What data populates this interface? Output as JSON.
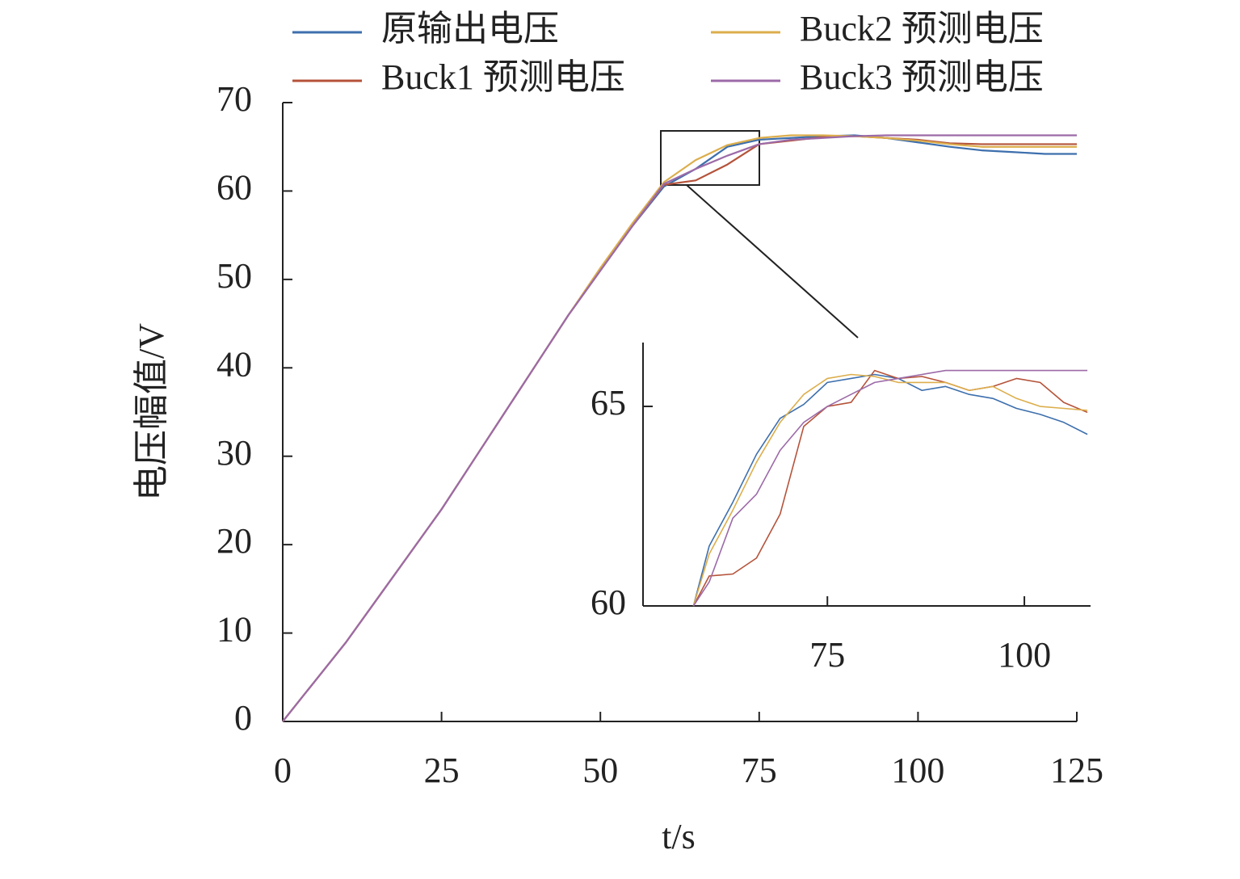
{
  "chart_data": [
    {
      "type": "line",
      "x_label": "t/s",
      "y_label": "电压幅值/V",
      "x": [
        0,
        5,
        10,
        15,
        20,
        25,
        30,
        35,
        40,
        45,
        50,
        55,
        60,
        65,
        70,
        75,
        80,
        85,
        90,
        95,
        100,
        105,
        110,
        115,
        120,
        125
      ],
      "series": [
        {
          "name": "原输出电压",
          "color": "#3d6fad",
          "values": [
            0,
            4.5,
            9,
            14,
            19,
            24,
            29.5,
            35,
            40.5,
            46,
            51,
            56,
            60.5,
            62.5,
            65,
            65.8,
            66,
            66.2,
            66.3,
            66,
            65.5,
            65,
            64.6,
            64.4,
            64.2,
            64.2
          ]
        },
        {
          "name": "Buck1 预测电压",
          "color": "#b5533a",
          "values": [
            0,
            4.5,
            9,
            14,
            19,
            24,
            29.5,
            35,
            40.5,
            46,
            51,
            56,
            60.7,
            61.2,
            63,
            65.3,
            65.7,
            66.1,
            66.2,
            66,
            65.8,
            65.4,
            65.3,
            65.3,
            65.3,
            65.3
          ]
        },
        {
          "name": "Buck2 预测电压",
          "color": "#dcae4c",
          "values": [
            0,
            4.5,
            9,
            14,
            19,
            24,
            29.5,
            35,
            40.5,
            46,
            51.3,
            56.3,
            61,
            63.5,
            65.2,
            66,
            66.3,
            66.3,
            66.2,
            66,
            65.7,
            65.3,
            65,
            65,
            65,
            65
          ]
        },
        {
          "name": "Buck3 预测电压",
          "color": "#9c6aa8",
          "values": [
            0,
            4.5,
            9,
            14,
            19,
            24,
            29.5,
            35,
            40.5,
            46,
            51,
            56,
            60.8,
            62.5,
            64,
            65.3,
            65.8,
            66,
            66.2,
            66.3,
            66.3,
            66.3,
            66.3,
            66.3,
            66.3,
            66.3
          ]
        }
      ],
      "xlim": [
        0,
        125
      ],
      "xticks": [
        0,
        25,
        50,
        75,
        100,
        125
      ],
      "ylim": [
        0,
        70
      ],
      "yticks": [
        0,
        10,
        20,
        30,
        40,
        50,
        60,
        70
      ],
      "legend": "top"
    },
    {
      "type": "line",
      "x": [
        58,
        60,
        63,
        66,
        69,
        72,
        75,
        78,
        81,
        84,
        87,
        90,
        93,
        96,
        99,
        102,
        105,
        108
      ],
      "series": [
        {
          "color": "#3d6fad",
          "values": [
            60,
            61.5,
            62.6,
            63.8,
            64.7,
            65.05,
            65.6,
            65.7,
            65.8,
            65.7,
            65.4,
            65.5,
            65.3,
            65.2,
            64.95,
            64.8,
            64.6,
            64.3
          ]
        },
        {
          "color": "#b5533a",
          "values": [
            60,
            60.75,
            60.8,
            61.2,
            62.3,
            64.5,
            65,
            65.1,
            65.9,
            65.7,
            65.75,
            65.6,
            65.4,
            65.5,
            65.7,
            65.6,
            65.1,
            64.85
          ]
        },
        {
          "color": "#dcae4c",
          "values": [
            60,
            61.3,
            62.4,
            63.6,
            64.6,
            65.3,
            65.7,
            65.8,
            65.75,
            65.6,
            65.6,
            65.6,
            65.4,
            65.5,
            65.2,
            65,
            64.95,
            64.9
          ]
        },
        {
          "color": "#9c6aa8",
          "values": [
            60,
            60.6,
            62.2,
            62.8,
            63.9,
            64.6,
            65,
            65.3,
            65.6,
            65.7,
            65.8,
            65.9,
            65.9,
            65.9,
            65.9,
            65.9,
            65.9,
            65.9
          ]
        }
      ],
      "xlim": [
        51.6,
        108.4
      ],
      "xticks": [
        75,
        100
      ],
      "ylim": [
        60,
        66.6
      ],
      "yticks": [
        60,
        65
      ]
    }
  ]
}
